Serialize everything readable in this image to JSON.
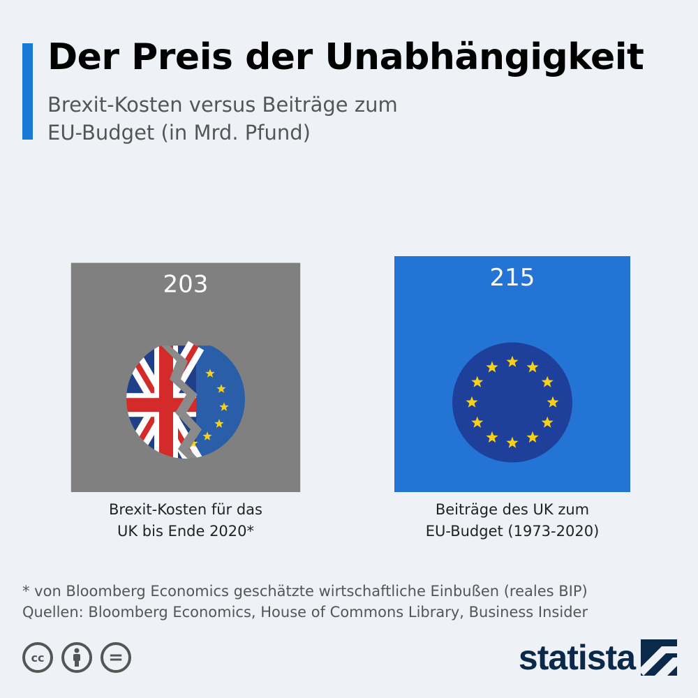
{
  "header": {
    "title": "Der Preis der Unabhängigkeit",
    "subtitle": "Brexit-Kosten versus Beiträge zum EU-Budget (in Mrd. Pfund)"
  },
  "chart_data": {
    "type": "bar",
    "title": "Der Preis der Unabhängigkeit",
    "subtitle": "Brexit-Kosten versus Beiträge zum EU-Budget (in Mrd. Pfund)",
    "categories": [
      [
        "Brexit-Kosten für das",
        "UK bis Ende 2020*"
      ],
      [
        "Beiträge des UK zum",
        "EU-Budget (1973-2020)"
      ]
    ],
    "values": [
      203,
      215
    ],
    "value_labels": [
      "203",
      "215"
    ],
    "colors": [
      "#808080",
      "#2474d6"
    ],
    "icons": [
      "uk-eu-broken-flag-icon",
      "eu-flag-icon"
    ],
    "xlabel": "",
    "ylabel": "",
    "grid": false,
    "legend": "none"
  },
  "footer": {
    "note": "* von Bloomberg Economics geschätzte wirtschaftliche Einbußen (reales BIP)",
    "sources": "Quellen: Bloomberg Economics, House of Commons Library, Business Insider",
    "license_icons": [
      "cc-icon",
      "by-icon",
      "nd-icon"
    ],
    "cc_label": "cc",
    "nd_label": "=",
    "logo": "statista"
  }
}
